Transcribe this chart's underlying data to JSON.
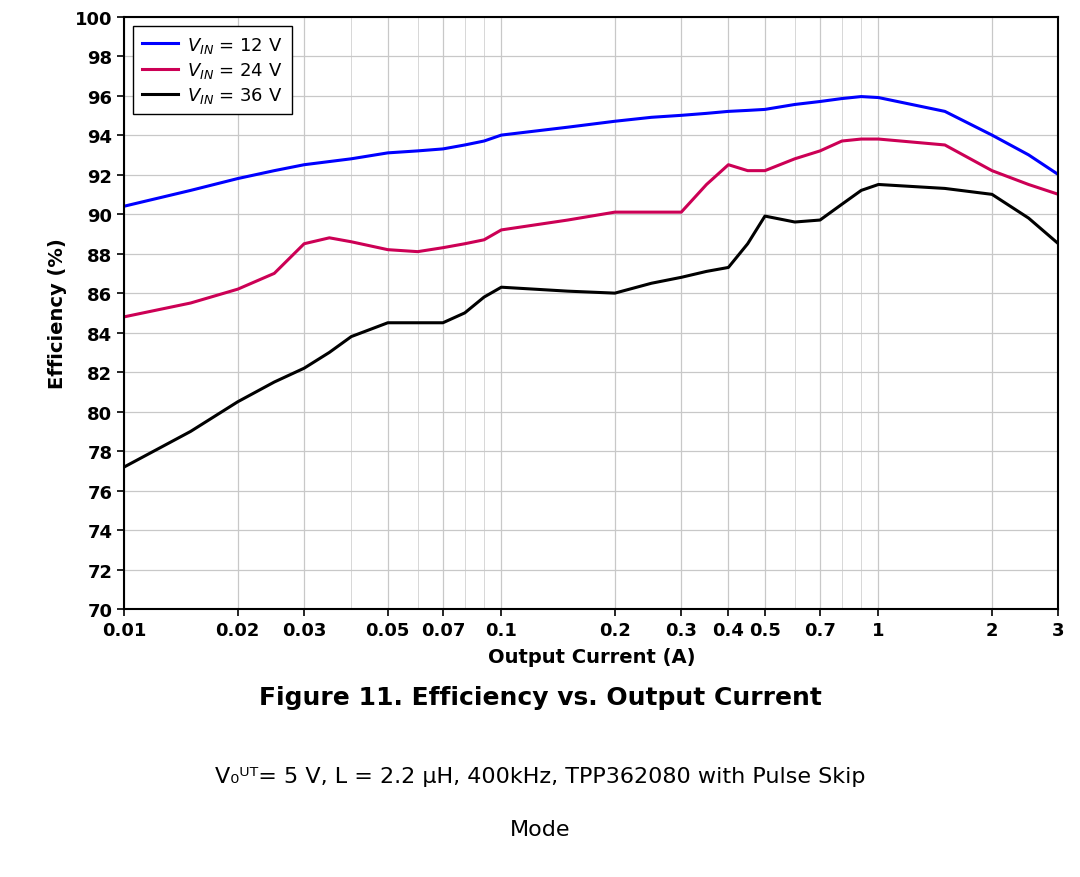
{
  "xlabel": "Output Current (A)",
  "ylabel": "Efficiency (%)",
  "ylim": [
    70,
    100
  ],
  "xlim": [
    0.01,
    3
  ],
  "background_color": "#ffffff",
  "grid_color": "#c8c8c8",
  "x_ticks": [
    0.01,
    0.02,
    0.03,
    0.05,
    0.07,
    0.1,
    0.2,
    0.3,
    0.4,
    0.5,
    0.7,
    1,
    2,
    3
  ],
  "x_tick_labels": [
    "0.01",
    "0.02",
    "0.03",
    "0.05",
    "0.07",
    "0.1",
    "0.2",
    "0.3",
    "0.4",
    "0.5",
    "0.7",
    "1",
    "2",
    "3"
  ],
  "figure_title": "Figure 11. Efficiency vs. Output Current",
  "subtitle_line1": "V₀ᵁᵀ= 5 V, L = 2.2 μH, 400kHz, TPP362080 with Pulse Skip",
  "subtitle_line2": "Mode",
  "series": [
    {
      "label_latex": "$V_{IN}$ = 12 V",
      "color": "#0000ff",
      "x": [
        0.01,
        0.015,
        0.02,
        0.025,
        0.03,
        0.04,
        0.05,
        0.06,
        0.07,
        0.08,
        0.09,
        0.1,
        0.15,
        0.2,
        0.25,
        0.3,
        0.35,
        0.4,
        0.45,
        0.5,
        0.6,
        0.7,
        0.8,
        0.9,
        1.0,
        1.5,
        2.0,
        2.5,
        3.0
      ],
      "y": [
        90.4,
        91.2,
        91.8,
        92.2,
        92.5,
        92.8,
        93.1,
        93.2,
        93.3,
        93.5,
        93.7,
        94.0,
        94.4,
        94.7,
        94.9,
        95.0,
        95.1,
        95.2,
        95.25,
        95.3,
        95.55,
        95.7,
        95.85,
        95.95,
        95.9,
        95.2,
        94.0,
        93.0,
        92.0
      ]
    },
    {
      "label_latex": "$V_{IN}$ = 24 V",
      "color": "#cc0055",
      "x": [
        0.01,
        0.015,
        0.02,
        0.025,
        0.03,
        0.035,
        0.04,
        0.05,
        0.06,
        0.07,
        0.08,
        0.09,
        0.1,
        0.15,
        0.2,
        0.25,
        0.3,
        0.35,
        0.4,
        0.45,
        0.5,
        0.6,
        0.7,
        0.8,
        0.9,
        1.0,
        1.5,
        2.0,
        2.5,
        3.0
      ],
      "y": [
        84.8,
        85.5,
        86.2,
        87.0,
        88.5,
        88.8,
        88.6,
        88.2,
        88.1,
        88.3,
        88.5,
        88.7,
        89.2,
        89.7,
        90.1,
        90.1,
        90.1,
        91.5,
        92.5,
        92.2,
        92.2,
        92.8,
        93.2,
        93.7,
        93.8,
        93.8,
        93.5,
        92.2,
        91.5,
        91.0
      ]
    },
    {
      "label_latex": "$V_{IN}$ = 36 V",
      "color": "#000000",
      "x": [
        0.01,
        0.015,
        0.02,
        0.025,
        0.03,
        0.035,
        0.04,
        0.05,
        0.06,
        0.07,
        0.08,
        0.09,
        0.1,
        0.15,
        0.2,
        0.25,
        0.3,
        0.35,
        0.4,
        0.45,
        0.5,
        0.6,
        0.7,
        0.8,
        0.9,
        1.0,
        1.5,
        2.0,
        2.5,
        3.0
      ],
      "y": [
        77.2,
        79.0,
        80.5,
        81.5,
        82.2,
        83.0,
        83.8,
        84.5,
        84.5,
        84.5,
        85.0,
        85.8,
        86.3,
        86.1,
        86.0,
        86.5,
        86.8,
        87.1,
        87.3,
        88.5,
        89.9,
        89.6,
        89.7,
        90.5,
        91.2,
        91.5,
        91.3,
        91.0,
        89.8,
        88.5
      ]
    }
  ]
}
